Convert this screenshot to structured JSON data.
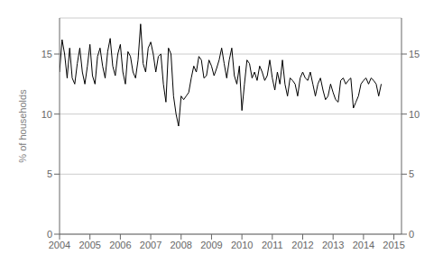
{
  "chart_data": {
    "type": "line",
    "ylabel": "% of households",
    "color": "#000000",
    "grid": true,
    "xlim": [
      2004.0,
      2015.25
    ],
    "xticks": [
      2004,
      2005,
      2006,
      2007,
      2008,
      2009,
      2010,
      2011,
      2012,
      2013,
      2014,
      2015
    ],
    "ylim": [
      0,
      18
    ],
    "yticks": [
      0,
      5,
      10,
      15
    ],
    "y2lim": [
      0,
      18
    ],
    "y2ticks": [
      0,
      5,
      10,
      15
    ],
    "x": [
      2004.0,
      2004.083333,
      2004.166667,
      2004.25,
      2004.333333,
      2004.416667,
      2004.5,
      2004.583333,
      2004.666667,
      2004.75,
      2004.833333,
      2004.916667,
      2005.0,
      2005.083333,
      2005.166667,
      2005.25,
      2005.333333,
      2005.416667,
      2005.5,
      2005.583333,
      2005.666667,
      2005.75,
      2005.833333,
      2005.916667,
      2006.0,
      2006.083333,
      2006.166667,
      2006.25,
      2006.333333,
      2006.416667,
      2006.5,
      2006.583333,
      2006.666667,
      2006.75,
      2006.833333,
      2006.916667,
      2007.0,
      2007.083333,
      2007.166667,
      2007.25,
      2007.333333,
      2007.416667,
      2007.5,
      2007.583333,
      2007.666667,
      2007.75,
      2007.833333,
      2007.916667,
      2008.0,
      2008.083333,
      2008.166667,
      2008.25,
      2008.333333,
      2008.416667,
      2008.5,
      2008.583333,
      2008.666667,
      2008.75,
      2008.833333,
      2008.916667,
      2009.0,
      2009.083333,
      2009.166667,
      2009.25,
      2009.333333,
      2009.416667,
      2009.5,
      2009.583333,
      2009.666667,
      2009.75,
      2009.833333,
      2009.916667,
      2010.0,
      2010.083333,
      2010.166667,
      2010.25,
      2010.333333,
      2010.416667,
      2010.5,
      2010.583333,
      2010.666667,
      2010.75,
      2010.833333,
      2010.916667,
      2011.0,
      2011.083333,
      2011.166667,
      2011.25,
      2011.333333,
      2011.416667,
      2011.5,
      2011.583333,
      2011.666667,
      2011.75,
      2011.833333,
      2011.916667,
      2012.0,
      2012.083333,
      2012.166667,
      2012.25,
      2012.333333,
      2012.416667,
      2012.5,
      2012.583333,
      2012.666667,
      2012.75,
      2012.833333,
      2012.916667,
      2013.0,
      2013.083333,
      2013.166667,
      2013.25,
      2013.333333,
      2013.416667,
      2013.5,
      2013.583333,
      2013.666667,
      2013.75,
      2013.833333,
      2013.916667,
      2014.0,
      2014.083333,
      2014.166667,
      2014.25,
      2014.333333,
      2014.416667,
      2014.5,
      2014.583333
    ],
    "values": [
      13.5,
      16.2,
      15.0,
      13.0,
      15.5,
      13.0,
      12.5,
      14.2,
      15.5,
      13.5,
      12.5,
      14.0,
      15.8,
      13.2,
      12.5,
      14.8,
      15.5,
      14.0,
      13.0,
      15.2,
      16.3,
      14.0,
      13.2,
      15.0,
      15.8,
      13.5,
      12.5,
      15.2,
      14.8,
      13.5,
      13.0,
      14.5,
      17.5,
      14.2,
      13.5,
      15.5,
      16.0,
      15.0,
      13.5,
      14.8,
      15.0,
      12.5,
      11.0,
      15.5,
      15.0,
      11.5,
      10.0,
      9.0,
      11.5,
      11.2,
      11.5,
      11.8,
      13.0,
      14.0,
      13.5,
      14.8,
      14.5,
      13.0,
      13.2,
      14.5,
      14.0,
      13.2,
      13.8,
      14.5,
      15.5,
      14.2,
      13.0,
      14.5,
      15.5,
      13.2,
      12.5,
      14.0,
      10.3,
      12.5,
      14.5,
      14.2,
      13.0,
      13.5,
      12.8,
      14.0,
      13.5,
      12.8,
      13.2,
      14.5,
      13.0,
      12.0,
      13.5,
      12.5,
      14.5,
      12.5,
      11.5,
      13.0,
      12.8,
      12.5,
      11.5,
      13.0,
      13.5,
      13.0,
      12.8,
      13.5,
      12.5,
      11.5,
      12.5,
      13.0,
      12.0,
      11.2,
      11.5,
      12.5,
      11.8,
      11.2,
      11.0,
      12.8,
      13.0,
      12.5,
      12.8,
      13.0,
      10.5,
      11.0,
      11.5,
      12.5,
      12.8,
      13.0,
      12.5,
      13.0,
      12.8,
      12.5,
      11.5,
      12.5
    ]
  }
}
